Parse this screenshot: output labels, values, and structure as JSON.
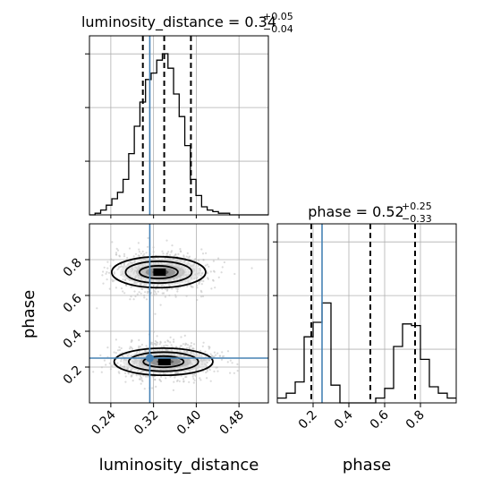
{
  "chart_data": [
    {
      "type": "histogram",
      "panel": "luminosity_distance marginal",
      "title": {
        "base": "luminosity_distance = 0.34",
        "upper": "+0.05",
        "lower": "−0.04"
      },
      "xlim": [
        0.2,
        0.535
      ],
      "ylim": [
        0,
        1.0
      ],
      "bin_edges": [
        0.2,
        0.2105,
        0.221,
        0.2315,
        0.242,
        0.2525,
        0.263,
        0.2735,
        0.284,
        0.2945,
        0.305,
        0.3155,
        0.326,
        0.3365,
        0.347,
        0.3575,
        0.368,
        0.3785,
        0.389,
        0.3995,
        0.41,
        0.4205,
        0.431,
        0.4415,
        0.452,
        0.4625,
        0.473,
        0.4835,
        0.494,
        0.5045,
        0.515,
        0.5255,
        0.535
      ],
      "counts": [
        0,
        0.01,
        0.03,
        0.06,
        0.1,
        0.14,
        0.22,
        0.38,
        0.55,
        0.7,
        0.84,
        0.88,
        0.96,
        1.0,
        0.91,
        0.75,
        0.61,
        0.43,
        0.22,
        0.12,
        0.05,
        0.03,
        0.02,
        0.01,
        0.01,
        0,
        0,
        0,
        0,
        0,
        0,
        0
      ],
      "quantiles": [
        0.3,
        0.34,
        0.39
      ],
      "truth": 0.313,
      "xticks": [
        0.24,
        0.32,
        0.4,
        0.48
      ],
      "grid": true
    },
    {
      "type": "histogram",
      "panel": "phase marginal",
      "title": {
        "base": "phase = 0.52",
        "upper": "+0.25",
        "lower": "−0.33"
      },
      "xlim": [
        0.0,
        1.0
      ],
      "ylim": [
        0,
        1.0
      ],
      "bin_edges": [
        0.0,
        0.05,
        0.1,
        0.15,
        0.2,
        0.25,
        0.3,
        0.35,
        0.4,
        0.45,
        0.5,
        0.55,
        0.6,
        0.65,
        0.7,
        0.75,
        0.8,
        0.85,
        0.9,
        0.95,
        1.0
      ],
      "counts": [
        0.03,
        0.06,
        0.13,
        0.41,
        0.5,
        0.62,
        0.11,
        0.0,
        0.0,
        0.0,
        0.0,
        0.03,
        0.09,
        0.35,
        0.49,
        0.48,
        0.27,
        0.1,
        0.06,
        0.03
      ],
      "quantiles": [
        0.19,
        0.52,
        0.77
      ],
      "truth": 0.25,
      "xticks": [
        0.2,
        0.4,
        0.6,
        0.8
      ],
      "xlabel": "phase",
      "grid": true
    },
    {
      "type": "scatter",
      "panel": "2D posterior density",
      "xlim": [
        0.2,
        0.535
      ],
      "ylim": [
        0.0,
        1.0
      ],
      "modes": [
        {
          "center": [
            0.333,
            0.73
          ],
          "spread": [
            0.04,
            0.048
          ],
          "weight": 0.48
        },
        {
          "center": [
            0.342,
            0.23
          ],
          "spread": [
            0.042,
            0.042
          ],
          "weight": 0.52
        }
      ],
      "truth": [
        0.313,
        0.25
      ],
      "xticks": [
        0.24,
        0.32,
        0.4,
        0.48
      ],
      "yticks": [
        0.2,
        0.4,
        0.6,
        0.8
      ],
      "xlabel": "luminosity_distance",
      "ylabel": "phase",
      "grid": true,
      "colors": {
        "truth": "#4682b4",
        "points": "#bdbdbd",
        "contour": "#000000"
      }
    }
  ]
}
